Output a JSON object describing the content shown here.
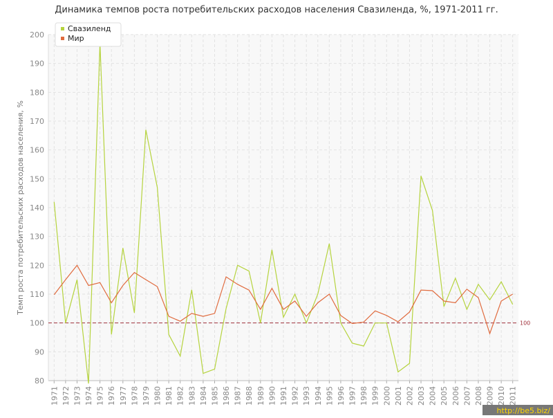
{
  "chart_data": {
    "type": "line",
    "title": "Динамика темпов роста потребительских расходов населения Свазиленда, %, 1971-2011 гг.",
    "y_label": "Темп роста потребительских расходов населения, %",
    "x": [
      1971,
      1972,
      1973,
      1974,
      1975,
      1976,
      1977,
      1978,
      1979,
      1980,
      1981,
      1982,
      1983,
      1984,
      1985,
      1986,
      1987,
      1988,
      1989,
      1990,
      1991,
      1992,
      1993,
      1994,
      1995,
      1996,
      1997,
      1998,
      1999,
      2000,
      2001,
      2002,
      2003,
      2004,
      2005,
      2006,
      2007,
      2008,
      2009,
      2010,
      2011
    ],
    "xlim": [
      1970.5,
      2011.5
    ],
    "xticks": [
      1971,
      1972,
      1973,
      1974,
      1975,
      1976,
      1977,
      1978,
      1979,
      1980,
      1981,
      1982,
      1983,
      1984,
      1985,
      1986,
      1987,
      1988,
      1989,
      1990,
      1991,
      1992,
      1993,
      1994,
      1995,
      1996,
      1997,
      1998,
      1999,
      2000,
      2001,
      2002,
      2003,
      2004,
      2005,
      2006,
      2007,
      2008,
      2009,
      2010,
      2011
    ],
    "ylim": [
      80,
      200
    ],
    "yticks": [
      80,
      90,
      100,
      110,
      120,
      130,
      140,
      150,
      160,
      170,
      180,
      190,
      200
    ],
    "grid": true,
    "legend": "top-left",
    "reference_line": 100,
    "series": [
      {
        "name": "Свазиленд",
        "color": "#b5d33d",
        "values": [
          142,
          100,
          115,
          79,
          197,
          96,
          126,
          103.5,
          167,
          147,
          96,
          88.5,
          111.5,
          82.5,
          84,
          105,
          120,
          118,
          100,
          125.4,
          102,
          110,
          100,
          110,
          127.5,
          100,
          93,
          92,
          100,
          100,
          83,
          86,
          151,
          139,
          105.7,
          115.5,
          104.7,
          113.4,
          108,
          114.3,
          106.4
        ]
      },
      {
        "name": "Мир",
        "color": "#e06b3e",
        "values": [
          109.8,
          115,
          120,
          113,
          114,
          107,
          113,
          117.5,
          115,
          112.6,
          102.3,
          100.6,
          103.3,
          102.3,
          103.3,
          116,
          113.4,
          111.4,
          104.7,
          112,
          104.7,
          107.6,
          102.3,
          107,
          110,
          102.6,
          99.8,
          100.3,
          104.2,
          102.6,
          100.4,
          103.8,
          111.4,
          111.2,
          107.6,
          107,
          111.7,
          108.8,
          96.3,
          107.6,
          110
        ]
      }
    ],
    "watermark": "http://be5.biz/"
  }
}
